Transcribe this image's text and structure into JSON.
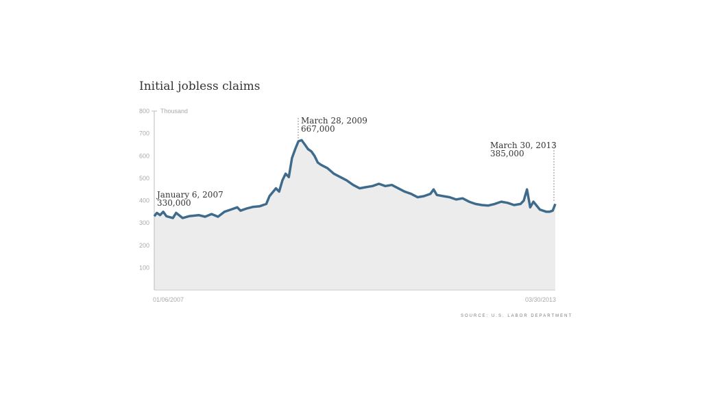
{
  "title": "Initial jobless claims",
  "source": "SOURCE: U.S. LABOR DEPARTMENT",
  "colors": {
    "line": "#3e6a8c",
    "area": "#ececec",
    "text": "#333333",
    "muted": "#a9a9a9"
  },
  "chart_data": {
    "type": "area",
    "title": "Initial jobless claims",
    "yunit": "Thousand",
    "ylim": [
      0,
      800
    ],
    "yticks": [
      100,
      200,
      300,
      400,
      500,
      600,
      700,
      800
    ],
    "xlim": [
      "01/06/2007",
      "03/30/2013"
    ],
    "x_tick_labels": [
      "01/06/2007",
      "03/30/2013"
    ],
    "grid": false,
    "series": [
      {
        "values": [
          [
            2007.01,
            330
          ],
          [
            2007.05,
            345
          ],
          [
            2007.1,
            335
          ],
          [
            2007.15,
            350
          ],
          [
            2007.2,
            330
          ],
          [
            2007.3,
            322
          ],
          [
            2007.35,
            345
          ],
          [
            2007.45,
            322
          ],
          [
            2007.55,
            330
          ],
          [
            2007.7,
            335
          ],
          [
            2007.8,
            328
          ],
          [
            2007.9,
            340
          ],
          [
            2008.0,
            328
          ],
          [
            2008.1,
            350
          ],
          [
            2008.2,
            360
          ],
          [
            2008.3,
            370
          ],
          [
            2008.35,
            355
          ],
          [
            2008.45,
            365
          ],
          [
            2008.55,
            372
          ],
          [
            2008.65,
            375
          ],
          [
            2008.75,
            385
          ],
          [
            2008.8,
            420
          ],
          [
            2008.9,
            455
          ],
          [
            2008.95,
            440
          ],
          [
            2009.0,
            490
          ],
          [
            2009.05,
            520
          ],
          [
            2009.1,
            505
          ],
          [
            2009.15,
            590
          ],
          [
            2009.2,
            630
          ],
          [
            2009.25,
            665
          ],
          [
            2009.3,
            670
          ],
          [
            2009.35,
            650
          ],
          [
            2009.4,
            630
          ],
          [
            2009.45,
            620
          ],
          [
            2009.5,
            600
          ],
          [
            2009.55,
            570
          ],
          [
            2009.6,
            560
          ],
          [
            2009.7,
            545
          ],
          [
            2009.8,
            520
          ],
          [
            2009.9,
            505
          ],
          [
            2010.0,
            490
          ],
          [
            2010.1,
            470
          ],
          [
            2010.2,
            455
          ],
          [
            2010.3,
            460
          ],
          [
            2010.4,
            465
          ],
          [
            2010.5,
            475
          ],
          [
            2010.6,
            465
          ],
          [
            2010.7,
            470
          ],
          [
            2010.8,
            455
          ],
          [
            2010.9,
            440
          ],
          [
            2011.0,
            430
          ],
          [
            2011.1,
            415
          ],
          [
            2011.2,
            420
          ],
          [
            2011.3,
            430
          ],
          [
            2011.35,
            450
          ],
          [
            2011.4,
            425
          ],
          [
            2011.5,
            420
          ],
          [
            2011.6,
            415
          ],
          [
            2011.7,
            405
          ],
          [
            2011.8,
            410
          ],
          [
            2011.9,
            395
          ],
          [
            2012.0,
            385
          ],
          [
            2012.1,
            380
          ],
          [
            2012.2,
            378
          ],
          [
            2012.3,
            385
          ],
          [
            2012.4,
            395
          ],
          [
            2012.5,
            390
          ],
          [
            2012.6,
            380
          ],
          [
            2012.7,
            385
          ],
          [
            2012.75,
            400
          ],
          [
            2012.8,
            450
          ],
          [
            2012.85,
            370
          ],
          [
            2012.9,
            395
          ],
          [
            2013.0,
            360
          ],
          [
            2013.1,
            350
          ],
          [
            2013.15,
            350
          ],
          [
            2013.2,
            355
          ],
          [
            2013.24,
            385
          ]
        ]
      }
    ],
    "annotations": [
      {
        "date": "January 6, 2007",
        "value": "330,000"
      },
      {
        "date": "March 28, 2009",
        "value": "667,000"
      },
      {
        "date": "March 30, 2013",
        "value": "385,000"
      }
    ]
  }
}
